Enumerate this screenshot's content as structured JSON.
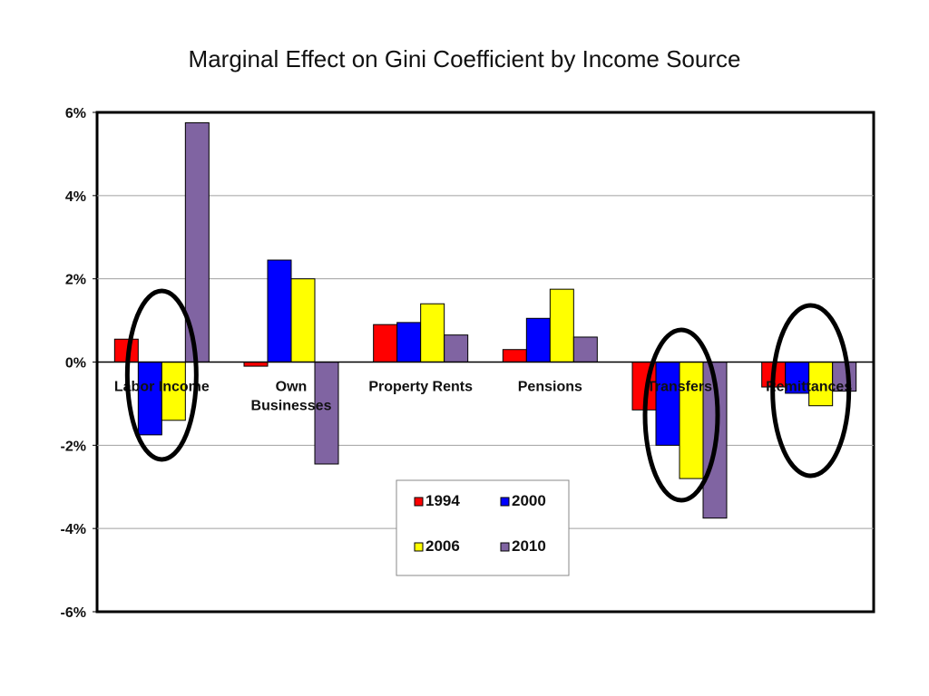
{
  "chart_data": {
    "type": "bar",
    "title": "Marginal Effect on Gini Coefficient by Income Source",
    "xlabel": "",
    "ylabel": "",
    "ylim": [
      -6,
      6
    ],
    "y_ticks": [
      6,
      4,
      2,
      0,
      -2,
      -4,
      -6
    ],
    "y_tick_labels": [
      "6%",
      "4%",
      "2%",
      "0%",
      "-2%",
      "-4%",
      "-6%"
    ],
    "grid": true,
    "legend_position": "bottom-center",
    "categories": [
      [
        "Labor Income"
      ],
      [
        "Own",
        "Businesses"
      ],
      [
        "Property Rents"
      ],
      [
        "Pensions"
      ],
      [
        "Transfers"
      ],
      [
        "Remittances"
      ]
    ],
    "series": [
      {
        "name": "1994",
        "color": "#ff0000",
        "values": [
          0.55,
          -0.1,
          0.9,
          0.3,
          -1.15,
          -0.6
        ]
      },
      {
        "name": "2000",
        "color": "#0000ff",
        "values": [
          -1.75,
          2.45,
          0.95,
          1.05,
          -2.0,
          -0.75
        ]
      },
      {
        "name": "2006",
        "color": "#ffff00",
        "values": [
          -1.4,
          2.0,
          1.4,
          1.75,
          -2.8,
          -1.05
        ]
      },
      {
        "name": "2010",
        "color": "#8064a2",
        "values": [
          5.75,
          -2.45,
          0.65,
          0.6,
          -3.75,
          -0.7
        ]
      }
    ],
    "highlighted_categories": [
      "Labor Income",
      "Transfers",
      "Remittances"
    ]
  }
}
